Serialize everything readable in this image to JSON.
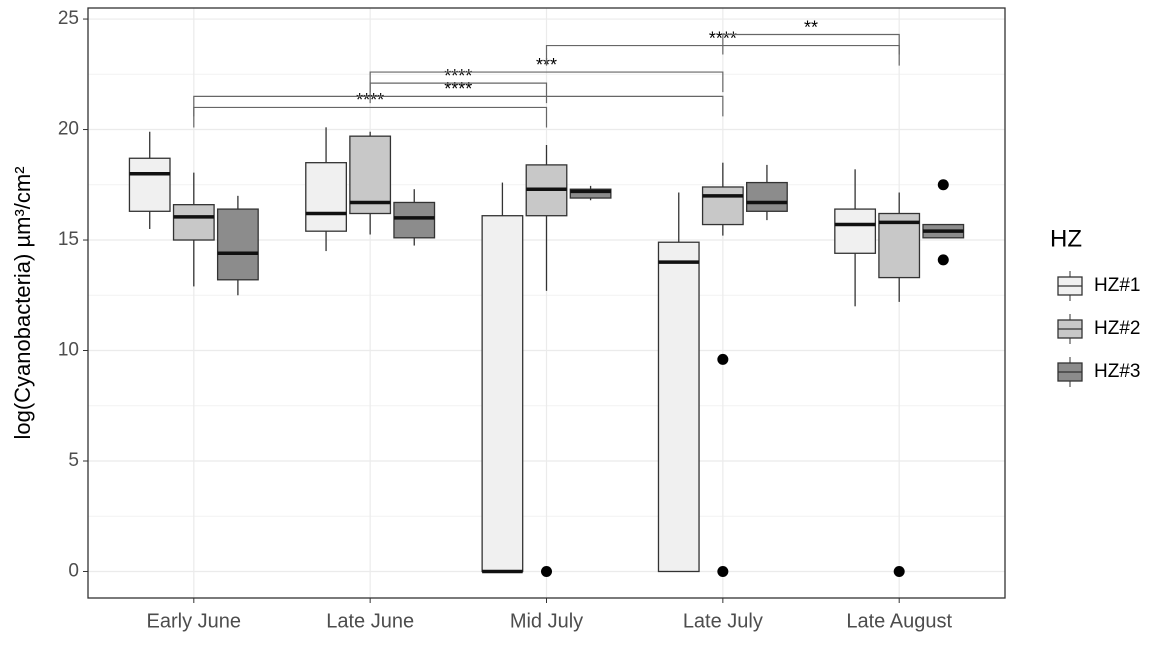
{
  "chart_data": {
    "type": "box",
    "y_label": "log(Cyanobacteria) µm³/cm²",
    "legend_title": "HZ",
    "categories": [
      "Early June",
      "Late June",
      "Mid July",
      "Late July",
      "Late August"
    ],
    "ylim": [
      -1.2,
      25.5
    ],
    "yticks": [
      0,
      5,
      10,
      15,
      20,
      25
    ],
    "grid": true,
    "series": [
      {
        "name": "HZ#1",
        "color": "#f0f0f0",
        "whislo": [
          15.5,
          14.5,
          0,
          0,
          12.0
        ],
        "q1": [
          16.3,
          15.4,
          0,
          0,
          14.4
        ],
        "med": [
          18.0,
          16.2,
          0,
          14.0,
          15.7
        ],
        "q3": [
          18.7,
          18.5,
          16.1,
          14.9,
          16.4
        ],
        "whishi": [
          19.9,
          20.1,
          17.6,
          17.15,
          18.2
        ],
        "fliers": [
          [],
          [],
          [],
          [],
          []
        ]
      },
      {
        "name": "HZ#2",
        "color": "#c8c8c8",
        "whislo": [
          12.9,
          15.25,
          12.7,
          15.2,
          12.2
        ],
        "q1": [
          15.0,
          16.2,
          16.1,
          15.7,
          13.3
        ],
        "med": [
          16.05,
          16.7,
          17.3,
          17.0,
          15.8
        ],
        "q3": [
          16.6,
          19.7,
          18.4,
          17.4,
          16.2
        ],
        "whishi": [
          18.05,
          19.9,
          19.3,
          18.5,
          17.15
        ],
        "fliers": [
          [],
          [],
          [
            0
          ],
          [
            9.6,
            0
          ],
          [
            0
          ]
        ]
      },
      {
        "name": "HZ#3",
        "color": "#8c8c8c",
        "whislo": [
          12.5,
          14.75,
          16.8,
          15.9,
          15.1
        ],
        "q1": [
          13.2,
          15.1,
          16.9,
          16.3,
          15.1
        ],
        "med": [
          14.4,
          16.0,
          17.2,
          16.7,
          15.4
        ],
        "q3": [
          16.4,
          16.7,
          17.3,
          17.6,
          15.7
        ],
        "whishi": [
          17.0,
          17.3,
          17.45,
          18.4,
          15.7
        ],
        "fliers": [
          [],
          [],
          [],
          [],
          [
            17.5,
            14.1
          ]
        ]
      }
    ],
    "comparisons": [
      {
        "from": "Early June",
        "to": "Mid July",
        "y": 21.0,
        "label": "****"
      },
      {
        "from": "Early June",
        "to": "Late July",
        "y": 21.5,
        "label": "****"
      },
      {
        "from": "Late June",
        "to": "Mid July",
        "y": 22.1,
        "label": "****"
      },
      {
        "from": "Late June",
        "to": "Late July",
        "y": 22.6,
        "label": "***"
      },
      {
        "from": "Mid July",
        "to": "Late August",
        "y": 23.8,
        "label": "****"
      },
      {
        "from": "Late July",
        "to": "Late August",
        "y": 24.3,
        "label": "**"
      }
    ]
  }
}
